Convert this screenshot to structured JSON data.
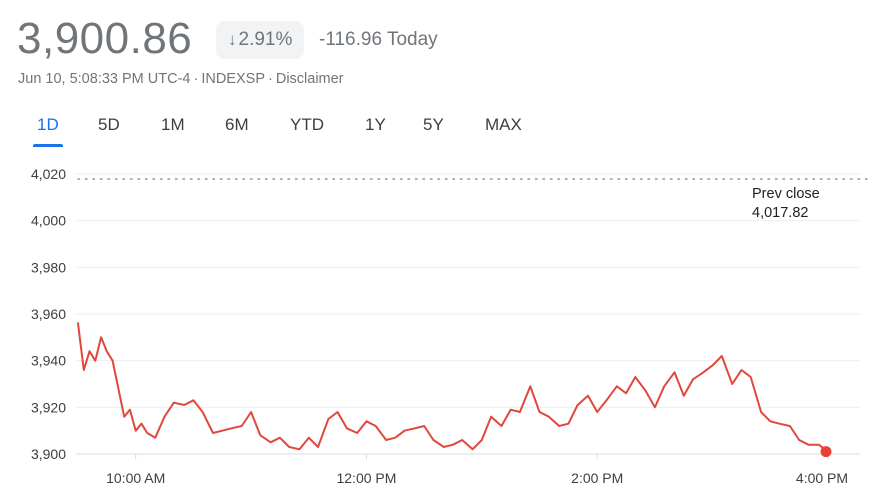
{
  "quote": {
    "price": "3,900.86",
    "change_percent": "2.91%",
    "change_direction_icon": "arrow-down-icon",
    "change_today": "-116.96 Today",
    "timestamp": "Jun 10, 5:08:33 PM UTC-4",
    "exchange": "INDEXSP",
    "disclaimer": "Disclaimer",
    "separator": "·"
  },
  "range_tabs": [
    {
      "label": "1D",
      "active": true
    },
    {
      "label": "5D",
      "active": false
    },
    {
      "label": "1M",
      "active": false
    },
    {
      "label": "6M",
      "active": false
    },
    {
      "label": "YTD",
      "active": false
    },
    {
      "label": "1Y",
      "active": false
    },
    {
      "label": "5Y",
      "active": false
    },
    {
      "label": "MAX",
      "active": false
    }
  ],
  "prev_close": {
    "label": "Prev close",
    "value": "4,017.82"
  },
  "colors": {
    "line": "#e0483d",
    "accent": "#1a73e8",
    "muted": "#70757a",
    "grid": "#eeeeee",
    "dot": "#e94235"
  },
  "chart_data": {
    "type": "line",
    "title": "",
    "xlabel": "",
    "ylabel": "",
    "ylim": [
      3900,
      4020
    ],
    "y_ticks": [
      "4,020",
      "4,000",
      "3,980",
      "3,960",
      "3,940",
      "3,920",
      "3,900"
    ],
    "y_tick_values": [
      4020,
      4000,
      3980,
      3960,
      3940,
      3920,
      3900
    ],
    "x_ticks": [
      "10:00 AM",
      "12:00 PM",
      "2:00 PM",
      "4:00 PM"
    ],
    "x_tick_hours": [
      10,
      12,
      14,
      16
    ],
    "x_range_hours": [
      9.5,
      16
    ],
    "reference_line": {
      "label": "Prev close",
      "value": 4017.82,
      "style": "dotted"
    },
    "grid": true,
    "series": [
      {
        "x_hours": [
          9.5,
          9.55,
          9.6,
          9.65,
          9.7,
          9.75,
          9.8,
          9.85,
          9.9,
          9.95,
          10.0,
          10.05,
          10.1,
          10.17,
          10.25,
          10.33,
          10.42,
          10.5,
          10.58,
          10.67,
          10.75,
          10.83,
          10.92,
          11.0,
          11.08,
          11.17,
          11.25,
          11.33,
          11.42,
          11.5,
          11.58,
          11.67,
          11.75,
          11.83,
          11.92,
          12.0,
          12.08,
          12.17,
          12.25,
          12.33,
          12.42,
          12.5,
          12.58,
          12.67,
          12.75,
          12.83,
          12.92,
          13.0,
          13.08,
          13.17,
          13.25,
          13.33,
          13.42,
          13.5,
          13.58,
          13.67,
          13.75,
          13.83,
          13.92,
          14.0,
          14.08,
          14.17,
          14.25,
          14.33,
          14.42,
          14.5,
          14.58,
          14.67,
          14.75,
          14.83,
          14.92,
          15.0,
          15.08,
          15.17,
          15.25,
          15.33,
          15.42,
          15.5,
          15.58,
          15.67,
          15.75,
          15.83,
          15.92,
          16.0
        ],
        "values": [
          3956,
          3936,
          3944,
          3940,
          3950,
          3944,
          3940,
          3928,
          3916,
          3919,
          3910,
          3913,
          3909,
          3907,
          3916,
          3922,
          3921,
          3923,
          3918,
          3909,
          3910,
          3911,
          3912,
          3918,
          3908,
          3905,
          3907,
          3903,
          3902,
          3907,
          3903,
          3915,
          3918,
          3911,
          3909,
          3914,
          3912,
          3906,
          3907,
          3910,
          3911,
          3912,
          3906,
          3903,
          3904,
          3906,
          3902,
          3906,
          3916,
          3912,
          3919,
          3918,
          3929,
          3918,
          3916,
          3912,
          3913,
          3921,
          3925,
          3918,
          3923,
          3929,
          3926,
          3933,
          3927,
          3920,
          3929,
          3935,
          3925,
          3932,
          3935,
          3938,
          3942,
          3930,
          3936,
          3933,
          3918,
          3914,
          3913,
          3912,
          3906,
          3904,
          3904,
          3901
        ]
      }
    ]
  }
}
